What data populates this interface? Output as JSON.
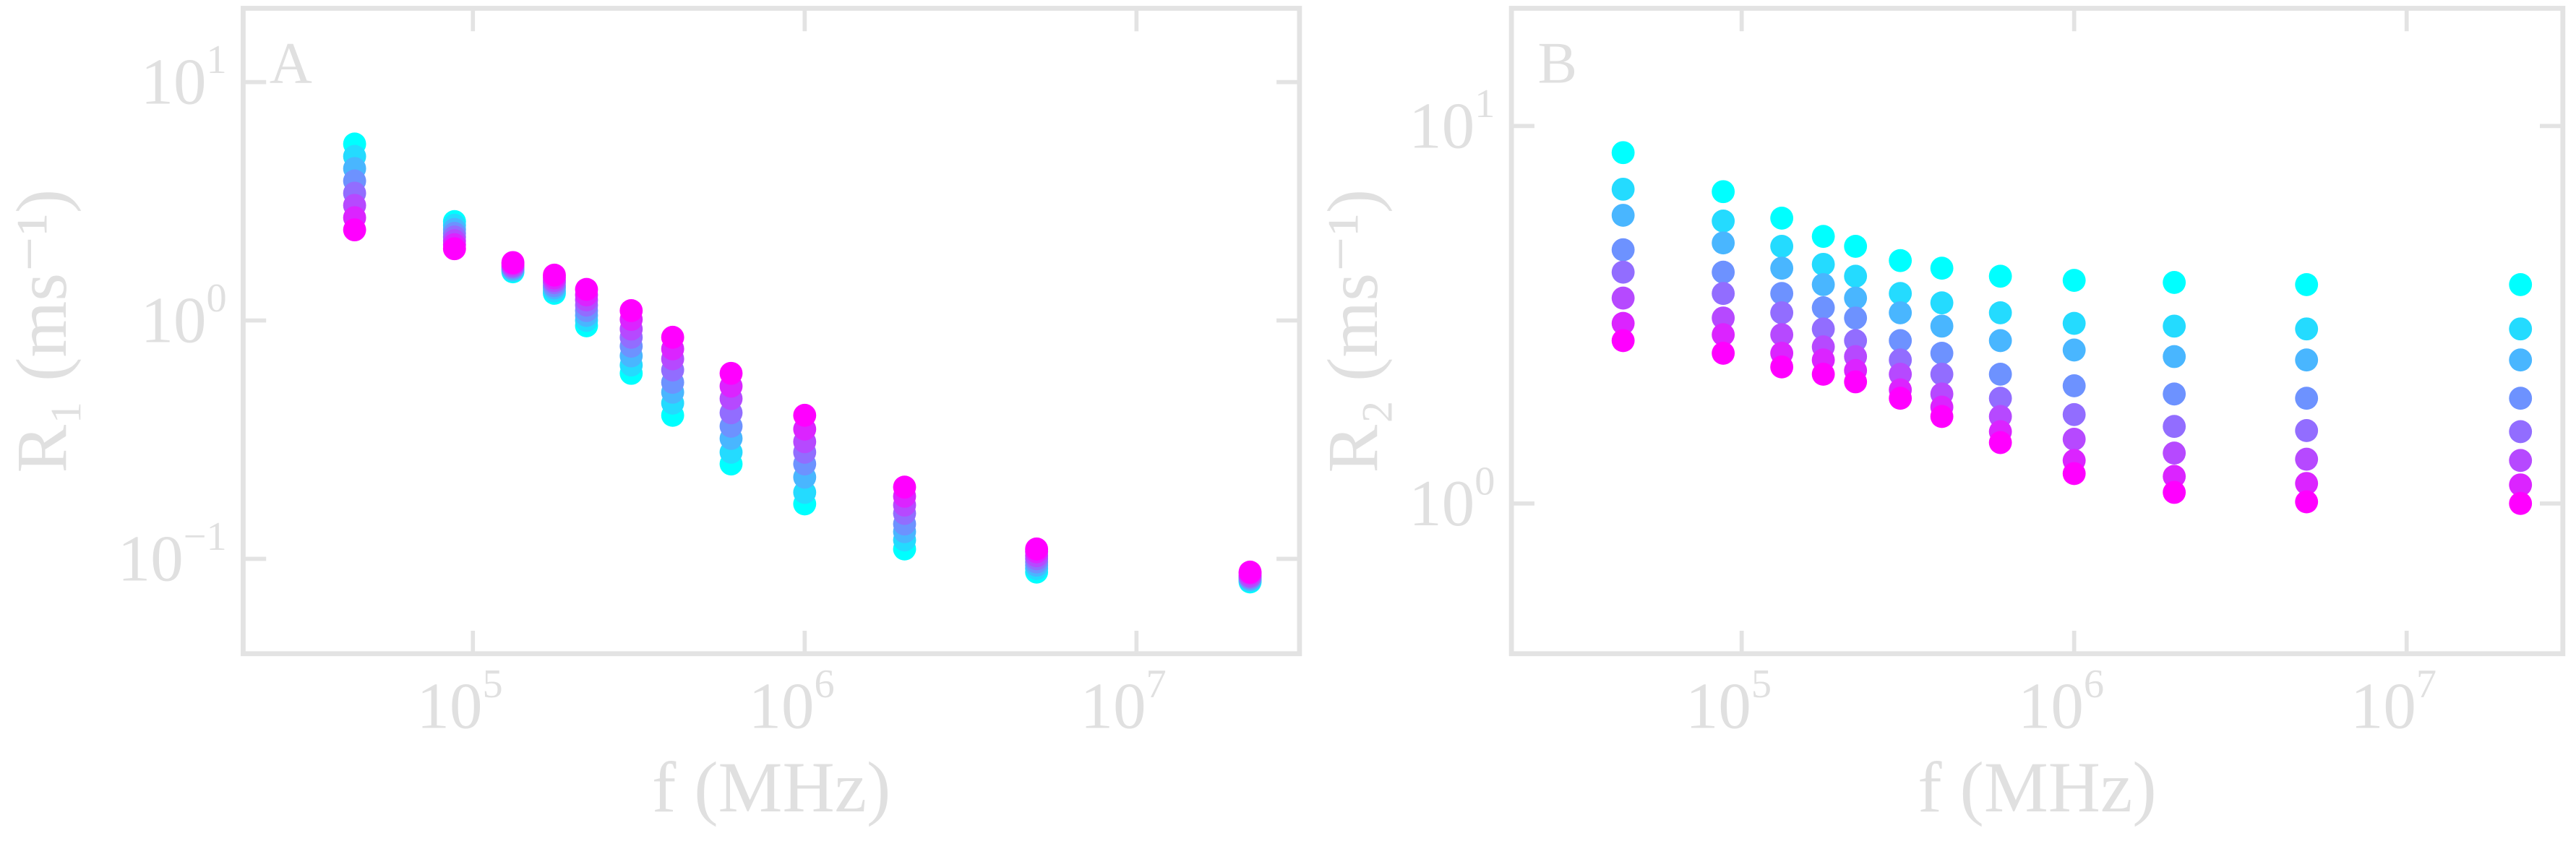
{
  "chart_data": [
    {
      "type": "scatter",
      "title": "A",
      "xlabel": "f (MHz)",
      "ylabel": "R₁ (ms⁻¹)",
      "xscale": "log",
      "yscale": "log",
      "xlim": [
        20300,
        31000000
      ],
      "ylim": [
        0.04,
        20.4
      ],
      "xticks": [
        {
          "value": 100000,
          "label": "10",
          "exponent": "5"
        },
        {
          "value": 1000000,
          "label": "10",
          "exponent": "6"
        },
        {
          "value": 10000000,
          "label": "10",
          "exponent": "7"
        }
      ],
      "yticks": [
        {
          "value": 0.1,
          "label": "10",
          "exponent": "−1"
        },
        {
          "value": 1,
          "label": "10",
          "exponent": "0"
        },
        {
          "value": 10,
          "label": "10",
          "exponent": "1"
        }
      ],
      "x": [
        44000,
        88000,
        132000,
        176000,
        220000,
        300000,
        400000,
        600000,
        1000000,
        2000000,
        5000000,
        22000000
      ],
      "series": [
        {
          "color": "#00ffff",
          "values": [
            5.5,
            2.6,
            1.6,
            1.3,
            0.95,
            0.6,
            0.4,
            0.25,
            0.17,
            0.11,
            0.088,
            0.08
          ]
        },
        {
          "color": "#24dbff",
          "values": [
            4.88,
            2.51,
            1.62,
            1.33,
            1.0,
            0.65,
            0.45,
            0.28,
            0.19,
            0.12,
            0.091,
            0.081
          ]
        },
        {
          "color": "#49b6ff",
          "values": [
            4.34,
            2.41,
            1.64,
            1.37,
            1.05,
            0.71,
            0.5,
            0.32,
            0.22,
            0.13,
            0.094,
            0.082
          ]
        },
        {
          "color": "#6d92ff",
          "values": [
            3.85,
            2.32,
            1.66,
            1.4,
            1.1,
            0.78,
            0.55,
            0.36,
            0.25,
            0.14,
            0.097,
            0.083
          ]
        },
        {
          "color": "#926dff",
          "values": [
            3.42,
            2.24,
            1.68,
            1.44,
            1.16,
            0.85,
            0.62,
            0.41,
            0.28,
            0.155,
            0.1,
            0.084
          ]
        },
        {
          "color": "#b649ff",
          "values": [
            3.04,
            2.16,
            1.7,
            1.47,
            1.22,
            0.92,
            0.69,
            0.47,
            0.31,
            0.168,
            0.103,
            0.085
          ]
        },
        {
          "color": "#db24ff",
          "values": [
            2.7,
            2.08,
            1.73,
            1.51,
            1.28,
            1.01,
            0.76,
            0.53,
            0.35,
            0.183,
            0.107,
            0.087
          ]
        },
        {
          "color": "#ff00ff",
          "values": [
            2.4,
            2.0,
            1.75,
            1.55,
            1.35,
            1.1,
            0.85,
            0.6,
            0.4,
            0.2,
            0.11,
            0.088
          ]
        }
      ]
    },
    {
      "type": "scatter",
      "title": "B",
      "xlabel": "f (MHz)",
      "ylabel": "R₂ (ms⁻¹)",
      "xscale": "log",
      "yscale": "log",
      "xlim": [
        20300,
        29500000
      ],
      "ylim": [
        0.4,
        20.5
      ],
      "xticks": [
        {
          "value": 100000,
          "label": "10",
          "exponent": "5"
        },
        {
          "value": 1000000,
          "label": "10",
          "exponent": "6"
        },
        {
          "value": 10000000,
          "label": "10",
          "exponent": "7"
        }
      ],
      "yticks": [
        {
          "value": 1,
          "label": "10",
          "exponent": "0"
        },
        {
          "value": 10,
          "label": "10",
          "exponent": "1"
        }
      ],
      "x": [
        44000,
        88000,
        132000,
        176000,
        220000,
        300000,
        400000,
        600000,
        1000000,
        2000000,
        5000000,
        22000000
      ],
      "series": [
        {
          "color": "#00ffff",
          "values": [
            8.5,
            6.7,
            5.7,
            5.1,
            4.8,
            4.4,
            4.2,
            4.0,
            3.9,
            3.85,
            3.8,
            3.8
          ]
        },
        {
          "color": "#24dbff",
          "values": [
            6.8,
            5.6,
            4.8,
            4.3,
            4.0,
            3.6,
            3.4,
            3.2,
            3.0,
            2.95,
            2.9,
            2.9
          ]
        },
        {
          "color": "#49b6ff",
          "values": [
            5.8,
            4.9,
            4.2,
            3.8,
            3.5,
            3.2,
            2.95,
            2.7,
            2.55,
            2.45,
            2.4,
            2.4
          ]
        },
        {
          "color": "#6d92ff",
          "values": [
            4.7,
            4.1,
            3.6,
            3.3,
            3.1,
            2.7,
            2.5,
            2.2,
            2.05,
            1.95,
            1.9,
            1.9
          ]
        },
        {
          "color": "#926dff",
          "values": [
            4.1,
            3.6,
            3.2,
            2.9,
            2.7,
            2.4,
            2.2,
            1.9,
            1.72,
            1.6,
            1.56,
            1.55
          ]
        },
        {
          "color": "#b649ff",
          "values": [
            3.5,
            3.1,
            2.8,
            2.6,
            2.45,
            2.2,
            1.95,
            1.7,
            1.48,
            1.36,
            1.31,
            1.3
          ]
        },
        {
          "color": "#db24ff",
          "values": [
            3.0,
            2.8,
            2.5,
            2.4,
            2.25,
            2.0,
            1.8,
            1.55,
            1.3,
            1.18,
            1.13,
            1.12
          ]
        },
        {
          "color": "#ff00ff",
          "values": [
            2.7,
            2.5,
            2.3,
            2.2,
            2.1,
            1.9,
            1.7,
            1.45,
            1.2,
            1.07,
            1.01,
            1.0
          ]
        }
      ]
    }
  ]
}
